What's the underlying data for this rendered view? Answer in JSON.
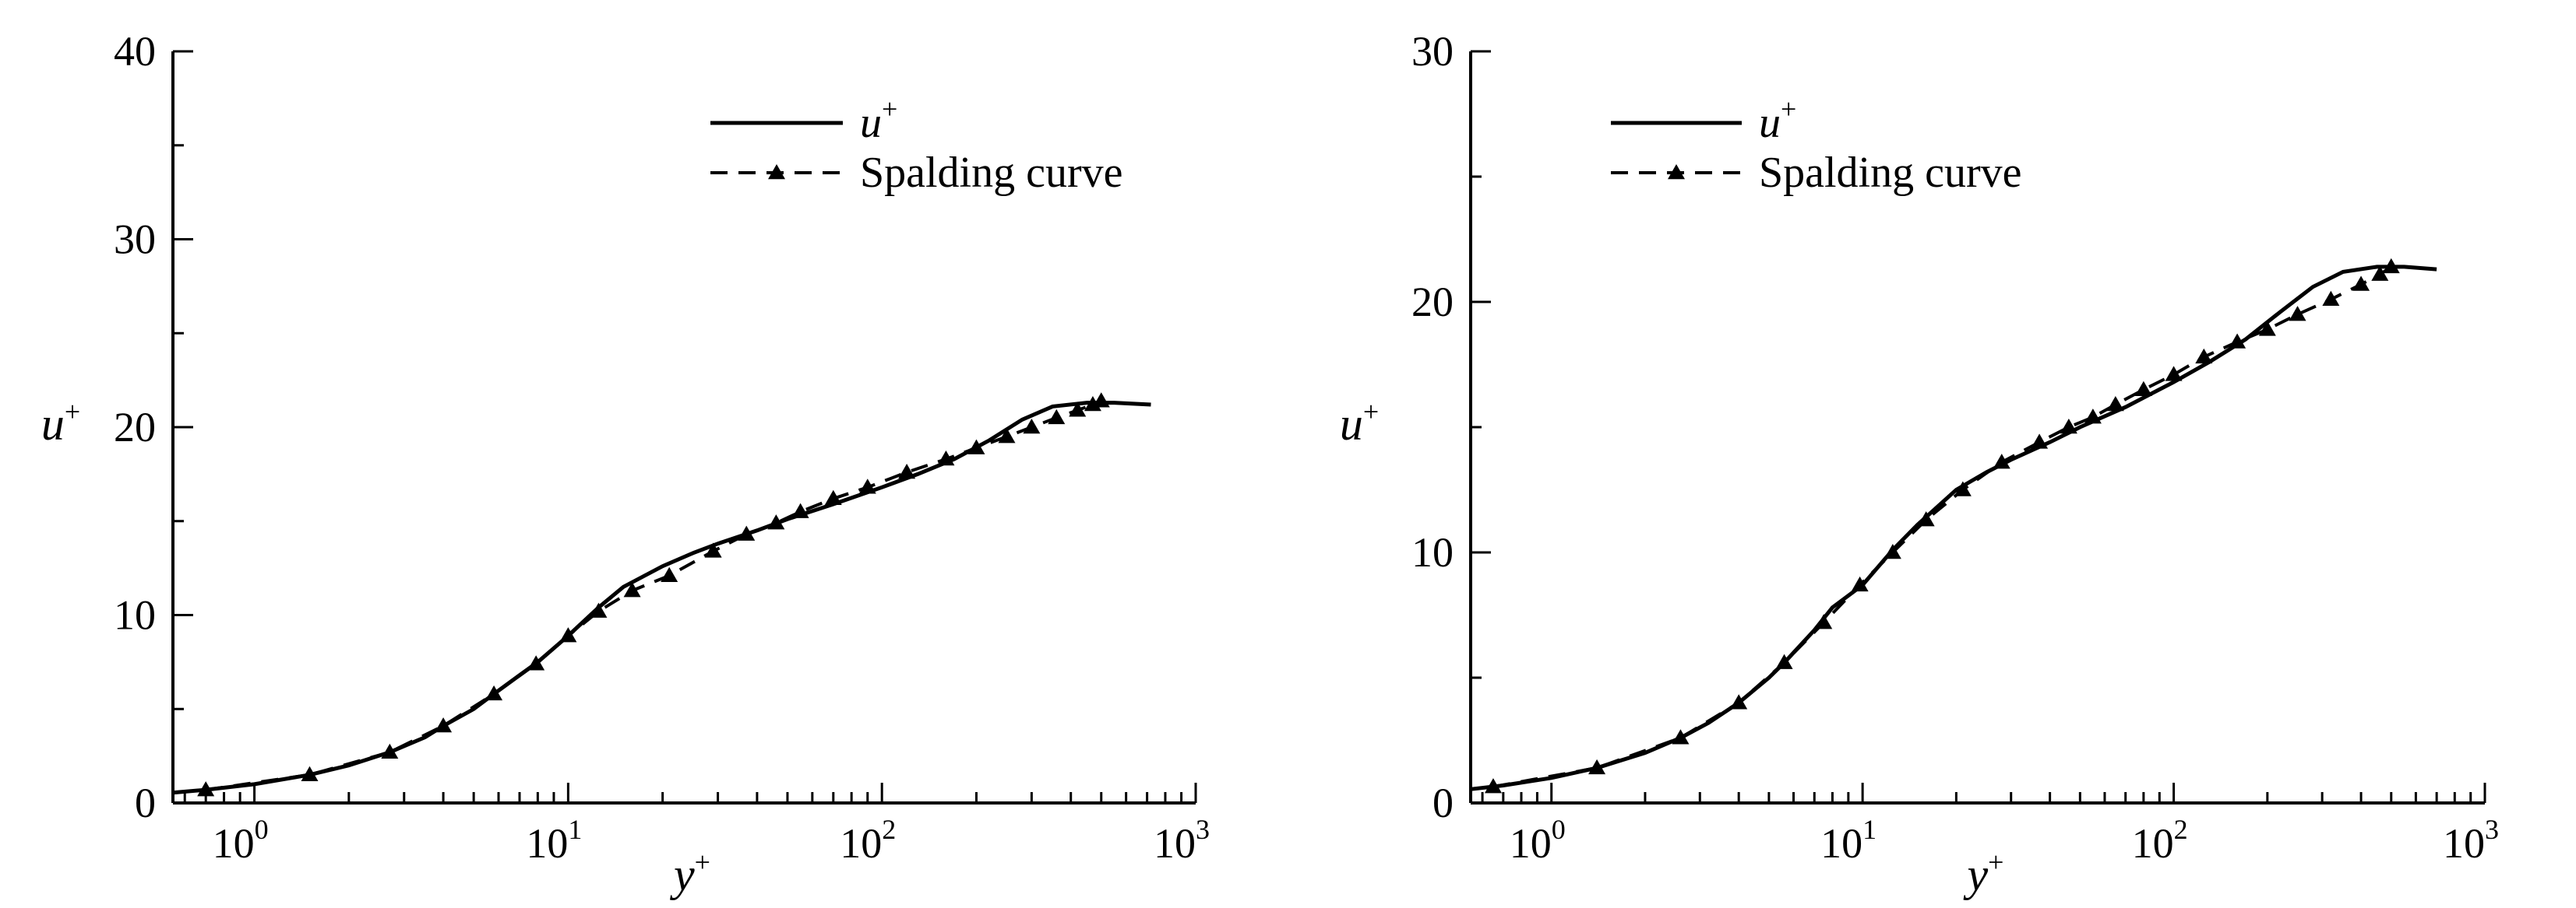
{
  "chart_data": [
    {
      "type": "line",
      "xscale": "log",
      "xlim": [
        0.55,
        1000
      ],
      "ylim": [
        0,
        40
      ],
      "yticks": [
        0,
        10,
        20,
        30,
        40
      ],
      "xticks": [
        1,
        10,
        100,
        1000
      ],
      "xtick_labels": [
        {
          "base": "10",
          "exp": "0"
        },
        {
          "base": "10",
          "exp": "1"
        },
        {
          "base": "10",
          "exp": "2"
        },
        {
          "base": "10",
          "exp": "3"
        }
      ],
      "xlabel": {
        "base": "y",
        "sup": "+"
      },
      "ylabel": {
        "base": "u",
        "sup": "+"
      },
      "legend_position": "top-right",
      "series": [
        {
          "name": "u",
          "name_sup": "+",
          "style": "solid",
          "x": [
            0.55,
            0.7,
            1.0,
            1.5,
            2.0,
            2.7,
            3.5,
            4.0,
            5.0,
            5.8,
            7.0,
            8.0,
            10.0,
            12.5,
            15.0,
            20.0,
            25.0,
            30.0,
            40.0,
            50.0,
            70.0,
            100.0,
            130.0,
            170.0,
            220.0,
            280.0,
            350.0,
            450.0,
            550.0,
            720.0
          ],
          "y": [
            0.55,
            0.7,
            1.0,
            1.5,
            2.0,
            2.7,
            3.5,
            4.1,
            5.0,
            5.8,
            6.8,
            7.5,
            8.9,
            10.4,
            11.5,
            12.6,
            13.3,
            13.8,
            14.5,
            15.1,
            15.9,
            16.8,
            17.5,
            18.3,
            19.3,
            20.4,
            21.1,
            21.3,
            21.3,
            21.2
          ]
        },
        {
          "name": "Spalding curve",
          "style": "dashed-triangle",
          "x": [
            0.7,
            1.5,
            2.7,
            4.0,
            5.8,
            7.9,
            10.0,
            12.5,
            16.0,
            21.0,
            29.0,
            37.0,
            46.0,
            55.0,
            70.0,
            90.0,
            120.0,
            160.0,
            200.0,
            250.0,
            300.0,
            360.0,
            420.0,
            470.0,
            500.0
          ],
          "y": [
            0.7,
            1.5,
            2.7,
            4.1,
            5.8,
            7.4,
            8.9,
            10.2,
            11.3,
            12.1,
            13.4,
            14.3,
            14.9,
            15.5,
            16.2,
            16.8,
            17.6,
            18.3,
            18.9,
            19.5,
            20.0,
            20.5,
            20.9,
            21.2,
            21.4
          ]
        }
      ]
    },
    {
      "type": "line",
      "xscale": "log",
      "xlim": [
        0.55,
        1000
      ],
      "ylim": [
        0,
        30
      ],
      "yticks": [
        0,
        10,
        20,
        30
      ],
      "xticks": [
        1,
        10,
        100,
        1000
      ],
      "xtick_labels": [
        {
          "base": "10",
          "exp": "0"
        },
        {
          "base": "10",
          "exp": "1"
        },
        {
          "base": "10",
          "exp": "2"
        },
        {
          "base": "10",
          "exp": "3"
        }
      ],
      "xlabel": {
        "base": "y",
        "sup": "+"
      },
      "ylabel": {
        "base": "u",
        "sup": "+"
      },
      "legend_position": "top-left",
      "series": [
        {
          "name": "u",
          "name_sup": "+",
          "style": "solid",
          "x": [
            0.55,
            0.7,
            1.0,
            1.4,
            2.0,
            2.6,
            3.2,
            4.0,
            5.0,
            5.6,
            7.0,
            8.0,
            10.0,
            12.5,
            15.0,
            20.0,
            25.0,
            30.0,
            40.0,
            50.0,
            70.0,
            100.0,
            130.0,
            170.0,
            220.0,
            280.0,
            350.0,
            450.0,
            550.0,
            700.0
          ],
          "y": [
            0.55,
            0.7,
            1.0,
            1.4,
            2.0,
            2.6,
            3.2,
            4.0,
            5.0,
            5.6,
            6.9,
            7.8,
            8.7,
            10.1,
            11.1,
            12.5,
            13.2,
            13.7,
            14.4,
            15.0,
            15.8,
            16.8,
            17.6,
            18.5,
            19.6,
            20.6,
            21.2,
            21.4,
            21.4,
            21.3
          ]
        },
        {
          "name": "Spalding curve",
          "style": "dashed-triangle",
          "x": [
            0.65,
            1.4,
            2.6,
            4.0,
            5.6,
            7.5,
            9.8,
            12.5,
            16.0,
            21.0,
            28.0,
            37.0,
            46.0,
            55.0,
            65.0,
            80.0,
            100.0,
            125.0,
            160.0,
            200.0,
            250.0,
            320.0,
            400.0,
            460.0,
            500.0
          ],
          "y": [
            0.65,
            1.4,
            2.6,
            4.0,
            5.6,
            7.2,
            8.7,
            10.0,
            11.3,
            12.5,
            13.6,
            14.4,
            15.0,
            15.4,
            15.9,
            16.5,
            17.1,
            17.8,
            18.4,
            18.9,
            19.5,
            20.1,
            20.7,
            21.1,
            21.4
          ]
        }
      ]
    }
  ]
}
